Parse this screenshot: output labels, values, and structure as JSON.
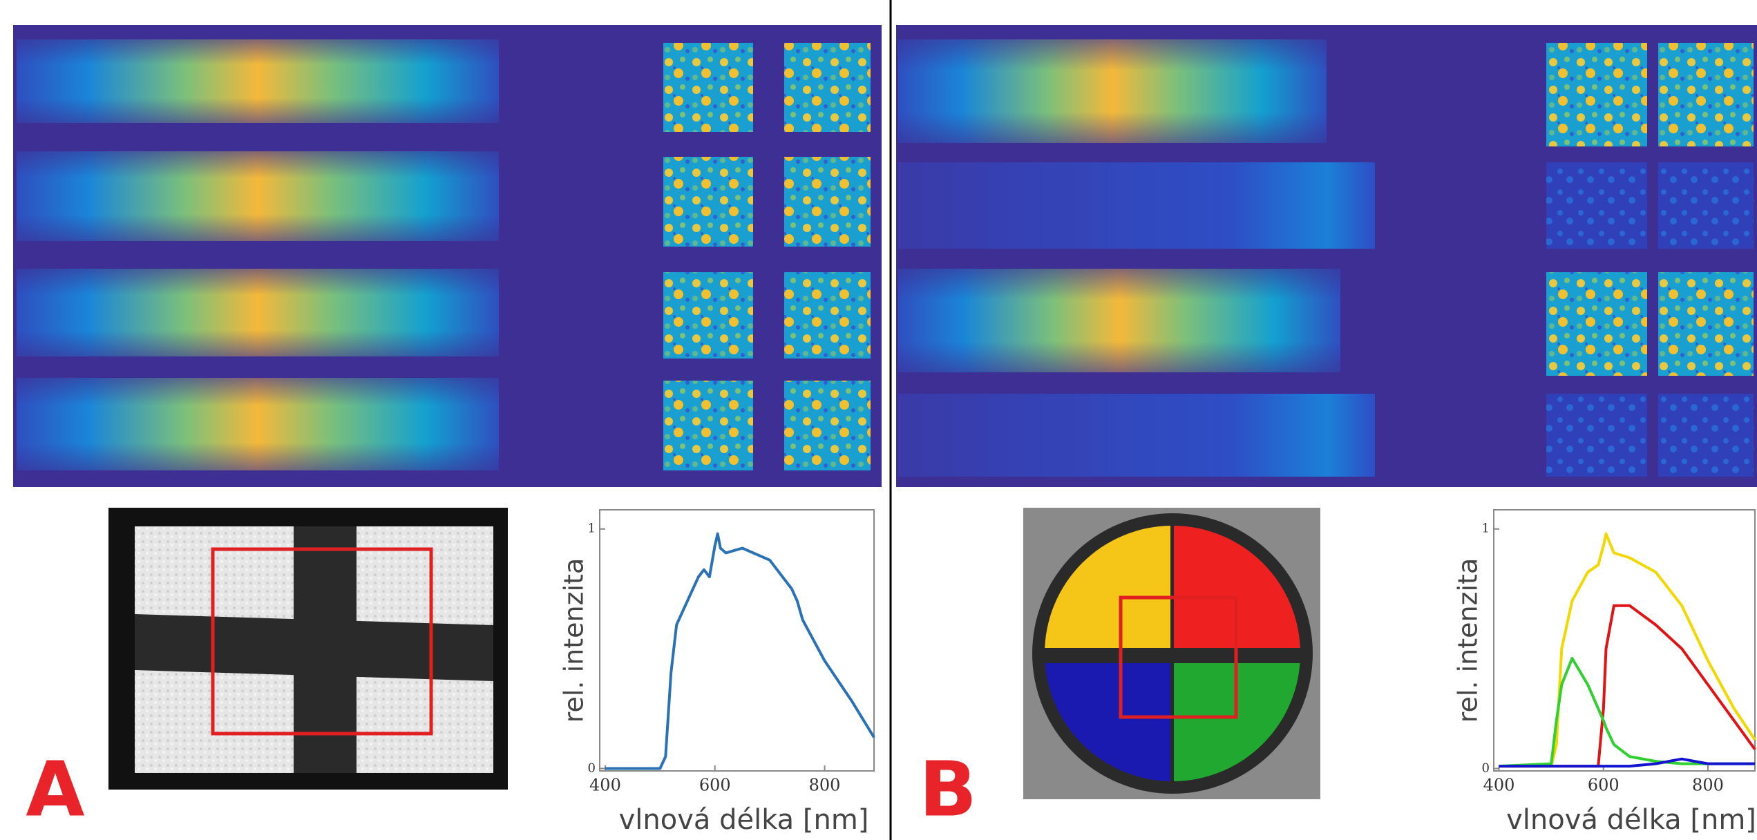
{
  "chart_data": [
    {
      "type": "line",
      "panel_label": "A",
      "xlabel": "vlnová délka [nm]",
      "ylabel": "rel. intenzita",
      "x": [
        400,
        500,
        510,
        520,
        530,
        550,
        570,
        580,
        590,
        600,
        605,
        610,
        620,
        650,
        700,
        740,
        750,
        760,
        800,
        850,
        890
      ],
      "series": [
        {
          "color": "#2a72b5",
          "values": [
            0.0,
            0.0,
            0.05,
            0.4,
            0.6,
            0.7,
            0.8,
            0.83,
            0.8,
            0.93,
            0.98,
            0.92,
            0.9,
            0.92,
            0.87,
            0.75,
            0.7,
            0.62,
            0.45,
            0.28,
            0.13
          ]
        }
      ],
      "xlim": [
        390,
        890
      ],
      "ylim": [
        -0.01,
        1.08
      ],
      "xticks": [
        400,
        600,
        800
      ],
      "yticks": [
        0,
        1
      ]
    },
    {
      "type": "line",
      "panel_label": "B",
      "xlabel": "vlnová délka [nm]",
      "ylabel": "rel. intenzita",
      "x": [
        400,
        500,
        510,
        520,
        540,
        570,
        590,
        600,
        605,
        620,
        650,
        700,
        750,
        800,
        850,
        890
      ],
      "series": [
        {
          "color": "#f2d800",
          "values": [
            0.01,
            0.01,
            0.1,
            0.5,
            0.7,
            0.82,
            0.85,
            0.93,
            0.98,
            0.9,
            0.88,
            0.82,
            0.68,
            0.45,
            0.25,
            0.12
          ]
        },
        {
          "color": "#e01414",
          "values": [
            0.01,
            0.01,
            0.01,
            0.01,
            0.01,
            0.01,
            0.01,
            0.25,
            0.5,
            0.68,
            0.68,
            0.6,
            0.5,
            0.35,
            0.2,
            0.08
          ]
        },
        {
          "color": "#30d030",
          "values": [
            0.01,
            0.02,
            0.2,
            0.35,
            0.46,
            0.35,
            0.25,
            0.2,
            0.17,
            0.1,
            0.05,
            0.03,
            0.02,
            0.02,
            0.02,
            0.02
          ]
        },
        {
          "color": "#1414d0",
          "values": [
            0.01,
            0.01,
            0.01,
            0.01,
            0.01,
            0.01,
            0.01,
            0.01,
            0.01,
            0.01,
            0.01,
            0.02,
            0.04,
            0.02,
            0.02,
            0.02
          ]
        }
      ],
      "xlim": [
        390,
        890
      ],
      "ylim": [
        -0.01,
        1.08
      ],
      "xticks": [
        400,
        600,
        800
      ],
      "yticks": [
        0,
        1
      ]
    }
  ]
}
